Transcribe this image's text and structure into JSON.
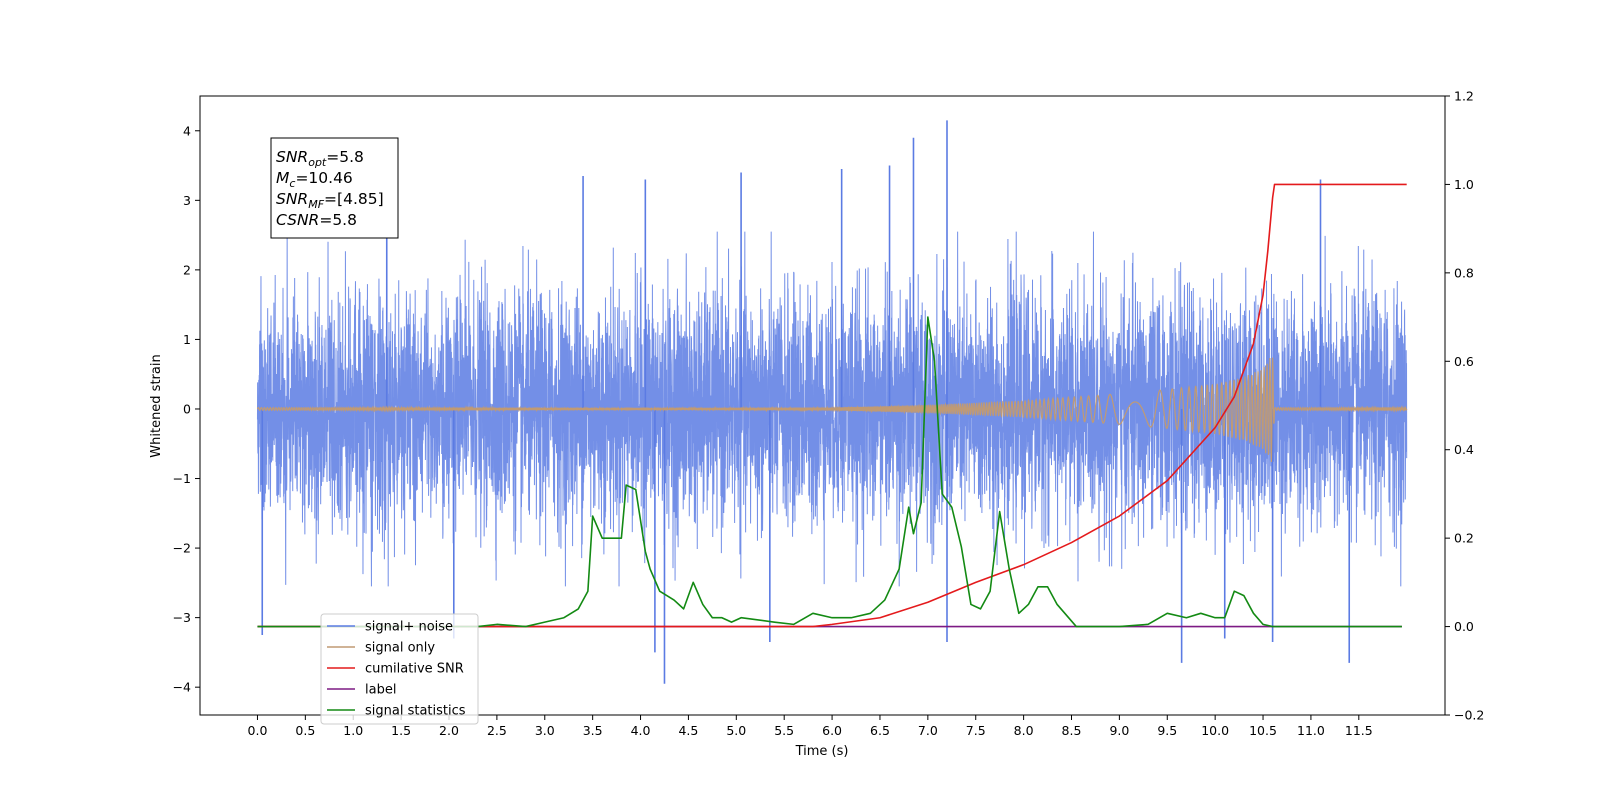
{
  "chart_data": {
    "type": "line",
    "xlabel": "Time (s)",
    "ylabel": "Whitened strain",
    "xlim": [
      -0.6,
      12.4
    ],
    "ylim": [
      -4.4,
      4.5
    ],
    "y2lim": [
      -0.2,
      1.2
    ],
    "xticks": [
      0.0,
      0.5,
      1.0,
      1.5,
      2.0,
      2.5,
      3.0,
      3.5,
      4.0,
      4.5,
      5.0,
      5.5,
      6.0,
      6.5,
      7.0,
      7.5,
      8.0,
      8.5,
      9.0,
      9.5,
      10.0,
      10.5,
      11.0,
      11.5
    ],
    "xtick_labels": [
      "0.0",
      "0.5",
      "1.0",
      "1.5",
      "2.0",
      "2.5",
      "3.0",
      "3.5",
      "4.0",
      "4.5",
      "5.0",
      "5.5",
      "6.0",
      "6.5",
      "7.0",
      "7.5",
      "8.0",
      "8.5",
      "9.0",
      "9.5",
      "10.0",
      "10.5",
      "11.0",
      "11.5"
    ],
    "yticks": [
      -4,
      -3,
      -2,
      -1,
      0,
      1,
      2,
      3,
      4
    ],
    "ytick_labels": [
      "−4",
      "−3",
      "−2",
      "−1",
      "0",
      "1",
      "2",
      "3",
      "4"
    ],
    "y2ticks": [
      -0.2,
      0.0,
      0.2,
      0.4,
      0.6,
      0.8,
      1.0,
      1.2
    ],
    "y2tick_labels": [
      "−0.2",
      "0.0",
      "0.2",
      "0.4",
      "0.6",
      "0.8",
      "1.0",
      "1.2"
    ],
    "grid": false,
    "legend_position": "lower-left",
    "annotation": {
      "lines": [
        {
          "pre": "SNR",
          "sub": "opt",
          "post": "=5.8"
        },
        {
          "pre": "M",
          "sub": "c",
          "post": "=10.46"
        },
        {
          "pre": "SNR",
          "sub": "MF",
          "post": "=[4.85]"
        },
        {
          "pre": "CSNR",
          "sub": "",
          "post": "=5.8"
        }
      ]
    },
    "series": [
      {
        "name": "signal+ noise",
        "axis": "left",
        "color": "#5b7be3",
        "duration": [
          0.0,
          12.0
        ],
        "amplitude_typical": 2.2,
        "spikes": [
          {
            "x": 0.05,
            "y": -3.25
          },
          {
            "x": 1.35,
            "y": 3.45
          },
          {
            "x": 2.05,
            "y": -3.3
          },
          {
            "x": 3.4,
            "y": 3.35
          },
          {
            "x": 4.05,
            "y": 3.3
          },
          {
            "x": 4.15,
            "y": -3.5
          },
          {
            "x": 4.25,
            "y": -3.95
          },
          {
            "x": 5.05,
            "y": 3.4
          },
          {
            "x": 5.35,
            "y": -3.35
          },
          {
            "x": 6.1,
            "y": 3.45
          },
          {
            "x": 6.6,
            "y": 3.5
          },
          {
            "x": 6.85,
            "y": 3.9
          },
          {
            "x": 7.2,
            "y": 4.15
          },
          {
            "x": 7.2,
            "y": -3.35
          },
          {
            "x": 9.65,
            "y": -3.65
          },
          {
            "x": 10.1,
            "y": -3.3
          },
          {
            "x": 10.6,
            "y": -3.35
          },
          {
            "x": 11.4,
            "y": -3.65
          },
          {
            "x": 11.1,
            "y": 3.3
          }
        ]
      },
      {
        "name": "signal only",
        "axis": "left",
        "color": "#c09a74",
        "envelope": {
          "x": [
            0.0,
            6.0,
            7.0,
            8.0,
            9.0,
            9.5,
            10.0,
            10.3,
            10.5,
            10.6,
            10.62,
            12.0
          ],
          "y": [
            0.02,
            0.02,
            0.06,
            0.12,
            0.22,
            0.28,
            0.36,
            0.46,
            0.58,
            0.8,
            0.02,
            0.02
          ]
        }
      },
      {
        "name": "cumilative SNR",
        "axis": "right",
        "color": "#e41a1c",
        "x": [
          0.0,
          5.8,
          6.0,
          6.5,
          7.0,
          7.5,
          8.0,
          8.5,
          9.0,
          9.5,
          10.0,
          10.2,
          10.4,
          10.5,
          10.55,
          10.6,
          10.62,
          12.0
        ],
        "y": [
          0.0,
          0.0,
          0.005,
          0.02,
          0.055,
          0.1,
          0.14,
          0.19,
          0.25,
          0.33,
          0.45,
          0.52,
          0.64,
          0.75,
          0.85,
          0.97,
          1.0,
          1.0
        ]
      },
      {
        "name": "label",
        "axis": "right",
        "color": "#7d1a84",
        "x": [
          0.0,
          11.95
        ],
        "y": [
          0.0,
          0.0
        ]
      },
      {
        "name": "signal statistics",
        "axis": "right",
        "color": "#138a13",
        "x": [
          0.0,
          2.3,
          2.5,
          2.8,
          3.0,
          3.2,
          3.35,
          3.45,
          3.5,
          3.6,
          3.7,
          3.8,
          3.85,
          3.95,
          4.05,
          4.1,
          4.2,
          4.35,
          4.45,
          4.55,
          4.65,
          4.75,
          4.85,
          4.95,
          5.05,
          5.4,
          5.6,
          5.8,
          6.0,
          6.2,
          6.4,
          6.55,
          6.7,
          6.8,
          6.85,
          6.93,
          7.0,
          7.07,
          7.15,
          7.25,
          7.35,
          7.45,
          7.55,
          7.65,
          7.75,
          7.85,
          7.95,
          8.05,
          8.15,
          8.25,
          8.35,
          8.55,
          9.0,
          9.3,
          9.5,
          9.7,
          9.85,
          10.0,
          10.1,
          10.2,
          10.3,
          10.4,
          10.5,
          10.6,
          11.95
        ],
        "y": [
          0.0,
          0.0,
          0.005,
          0.0,
          0.01,
          0.02,
          0.04,
          0.08,
          0.25,
          0.2,
          0.2,
          0.2,
          0.32,
          0.31,
          0.17,
          0.13,
          0.08,
          0.06,
          0.04,
          0.1,
          0.05,
          0.02,
          0.02,
          0.01,
          0.02,
          0.01,
          0.005,
          0.03,
          0.02,
          0.02,
          0.03,
          0.06,
          0.13,
          0.27,
          0.21,
          0.28,
          0.7,
          0.6,
          0.3,
          0.27,
          0.18,
          0.05,
          0.04,
          0.08,
          0.26,
          0.13,
          0.03,
          0.05,
          0.09,
          0.09,
          0.05,
          0.0,
          0.0,
          0.005,
          0.03,
          0.02,
          0.03,
          0.02,
          0.02,
          0.08,
          0.07,
          0.03,
          0.005,
          0.0,
          0.0
        ]
      }
    ]
  }
}
